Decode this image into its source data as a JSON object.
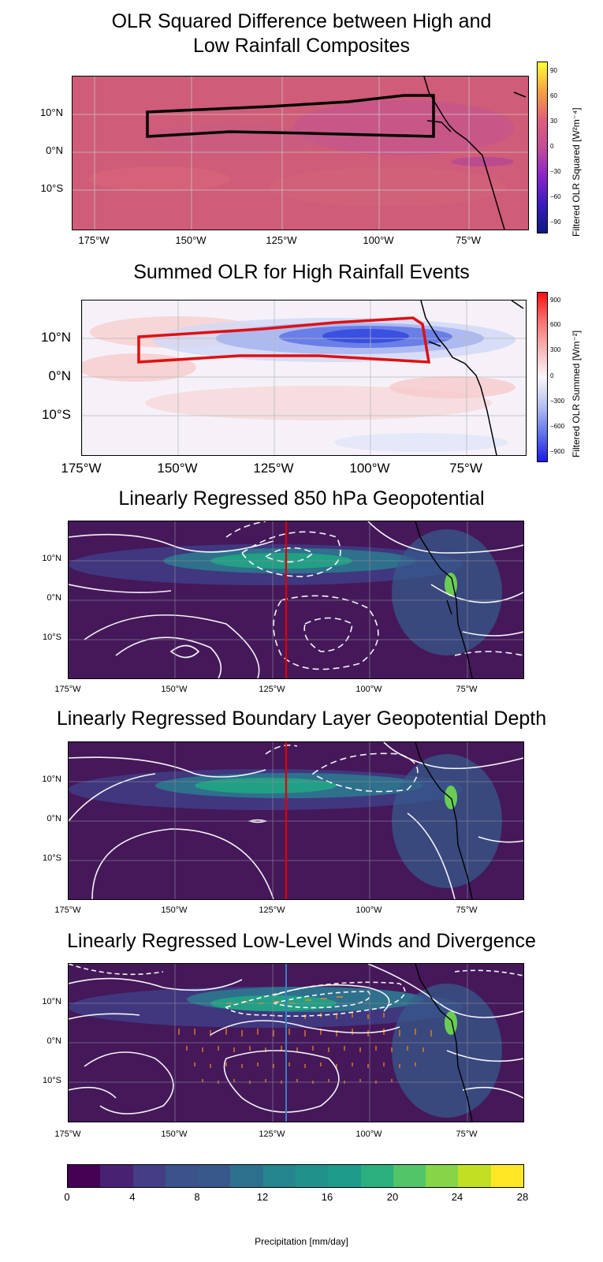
{
  "panels": [
    {
      "title": "OLR Squared Difference between High and\nLow Rainfall Composites",
      "y_ticks": [
        "10°N",
        "0°N",
        "10°S"
      ],
      "x_ticks": [
        "175°W",
        "150°W",
        "125°W",
        "100°W",
        "75°W"
      ],
      "colorbar": {
        "label": "Filtered OLR Squared [W²m⁻⁴]",
        "ticks": [
          "90",
          "60",
          "30",
          "0",
          "−30",
          "−60",
          "−90"
        ]
      }
    },
    {
      "title": "Summed OLR for High Rainfall Events",
      "y_ticks": [
        "10°N",
        "0°N",
        "10°S"
      ],
      "x_ticks": [
        "175°W",
        "150°W",
        "125°W",
        "100°W",
        "75°W"
      ],
      "colorbar": {
        "label": "Filtered OLR Summed [Wm⁻²]",
        "ticks": [
          "900",
          "600",
          "300",
          "0",
          "−300",
          "−600",
          "−900"
        ]
      }
    },
    {
      "title": "Linearly Regressed 850 hPa Geopotential",
      "y_ticks": [
        "10°N",
        "0°N",
        "10°S"
      ],
      "x_ticks": [
        "175°W",
        "150°W",
        "125°W",
        "100°W",
        "75°W"
      ]
    },
    {
      "title": "Linearly Regressed Boundary Layer Geopotential Depth",
      "y_ticks": [
        "10°N",
        "0°N",
        "10°S"
      ],
      "x_ticks": [
        "175°W",
        "150°W",
        "125°W",
        "100°W",
        "75°W"
      ]
    },
    {
      "title": "Linearly Regressed Low-Level Winds and Divergence",
      "y_ticks": [
        "10°N",
        "0°N",
        "10°S"
      ],
      "x_ticks": [
        "175°W",
        "150°W",
        "125°W",
        "100°W",
        "75°W"
      ]
    }
  ],
  "precip_colorbar": {
    "label": "Precipitation [mm/day]",
    "ticks": [
      "0",
      "4",
      "8",
      "12",
      "16",
      "20",
      "24",
      "28"
    ],
    "colors": [
      "#440154",
      "#482173",
      "#433e85",
      "#38588c",
      "#2d708e",
      "#25858e",
      "#1e9b8a",
      "#2ab07f",
      "#52c569",
      "#86d549",
      "#c2df23",
      "#fde725",
      "#3b528b",
      "#21918c"
    ]
  },
  "colors": {
    "composite_box": "#000000",
    "event_box": "#e01010",
    "reference_line_red": "#e00000",
    "reference_line_blue": "#3a80c0",
    "wind_vectors": "#f08a20",
    "contours": "#ffffff"
  }
}
